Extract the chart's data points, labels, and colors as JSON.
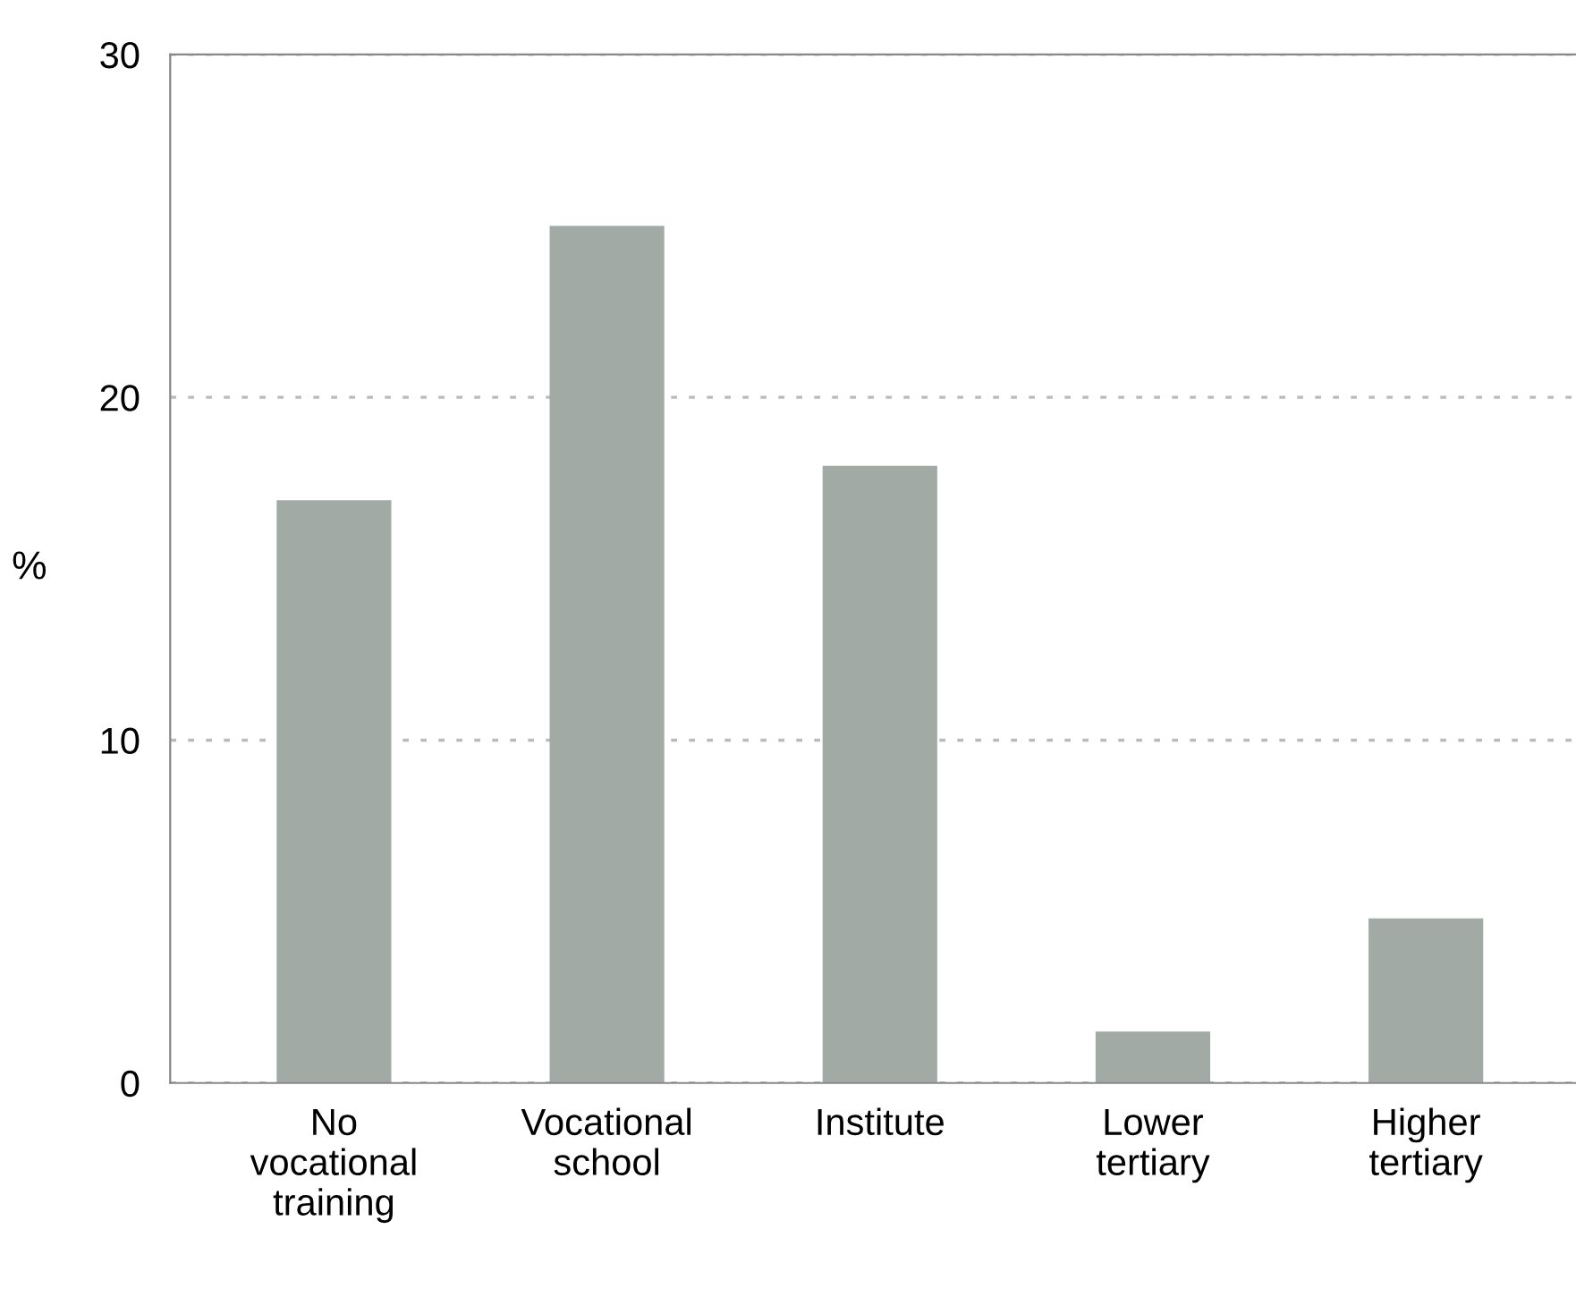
{
  "chart_data": {
    "type": "bar",
    "ylabel": "%",
    "categories": [
      "No\nvocational\ntraining",
      "Vocational\nschool",
      "Institute",
      "Lower\ntertiary",
      "Higher\ntertiary"
    ],
    "values": [
      17,
      25,
      18,
      1.5,
      4.8
    ],
    "color": "#a2aaa6",
    "ylim": [
      0,
      30
    ],
    "yticks": [
      0,
      10,
      20,
      30
    ],
    "grid": "y"
  }
}
